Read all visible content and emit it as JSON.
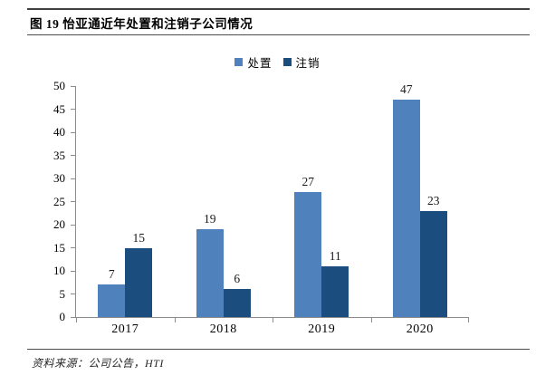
{
  "header": {
    "title": "图 19 怡亚通近年处置和注销子公司情况"
  },
  "footer": {
    "source": "资料来源：公司公告，HTI"
  },
  "colors": {
    "disposal_series": "#4F81BD",
    "deregister_series": "#1B4E7E",
    "axis": "#8c8c8c",
    "rule": "#404040"
  },
  "chart_data": {
    "type": "bar",
    "title": "怡亚通近年处置和注销子公司情况",
    "categories": [
      "2017",
      "2018",
      "2019",
      "2020"
    ],
    "series": [
      {
        "name": "处置",
        "color": "#4F81BD",
        "values": [
          7,
          19,
          27,
          47
        ]
      },
      {
        "name": "注销",
        "color": "#1B4E7E",
        "values": [
          15,
          6,
          11,
          23
        ]
      }
    ],
    "xlabel": "",
    "ylabel": "",
    "ylim": [
      0,
      50
    ],
    "ytick_step": 5,
    "grid": false,
    "legend_position": "top",
    "data_labels": true
  }
}
